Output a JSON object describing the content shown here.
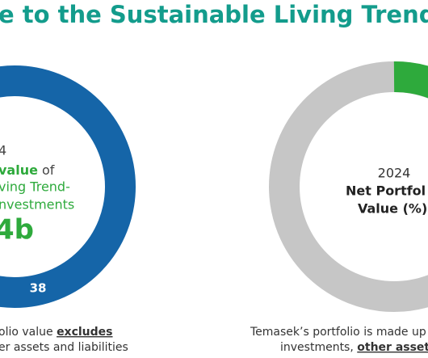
{
  "header": {
    "title": "e to the Sustainable Living Trend"
  },
  "left_panel": {
    "year": "4",
    "line1_highlight": "value",
    "line1_rest": "of",
    "line2": "ving Trend-",
    "line3": "nvestments",
    "amount": "4b",
    "segment_label": "38",
    "note_line1_start": "olio value ",
    "note_line1_emphasis": "excludes",
    "note_line2": "er assets and liabilities"
  },
  "right_panel": {
    "year": "2024",
    "line1": "Net Portfol",
    "line2": "Value (%)",
    "note_line1": "Temasek’s portfolio is made up o",
    "note_line2_start": "investments, ",
    "note_line2_emphasis": "other assets a"
  }
}
